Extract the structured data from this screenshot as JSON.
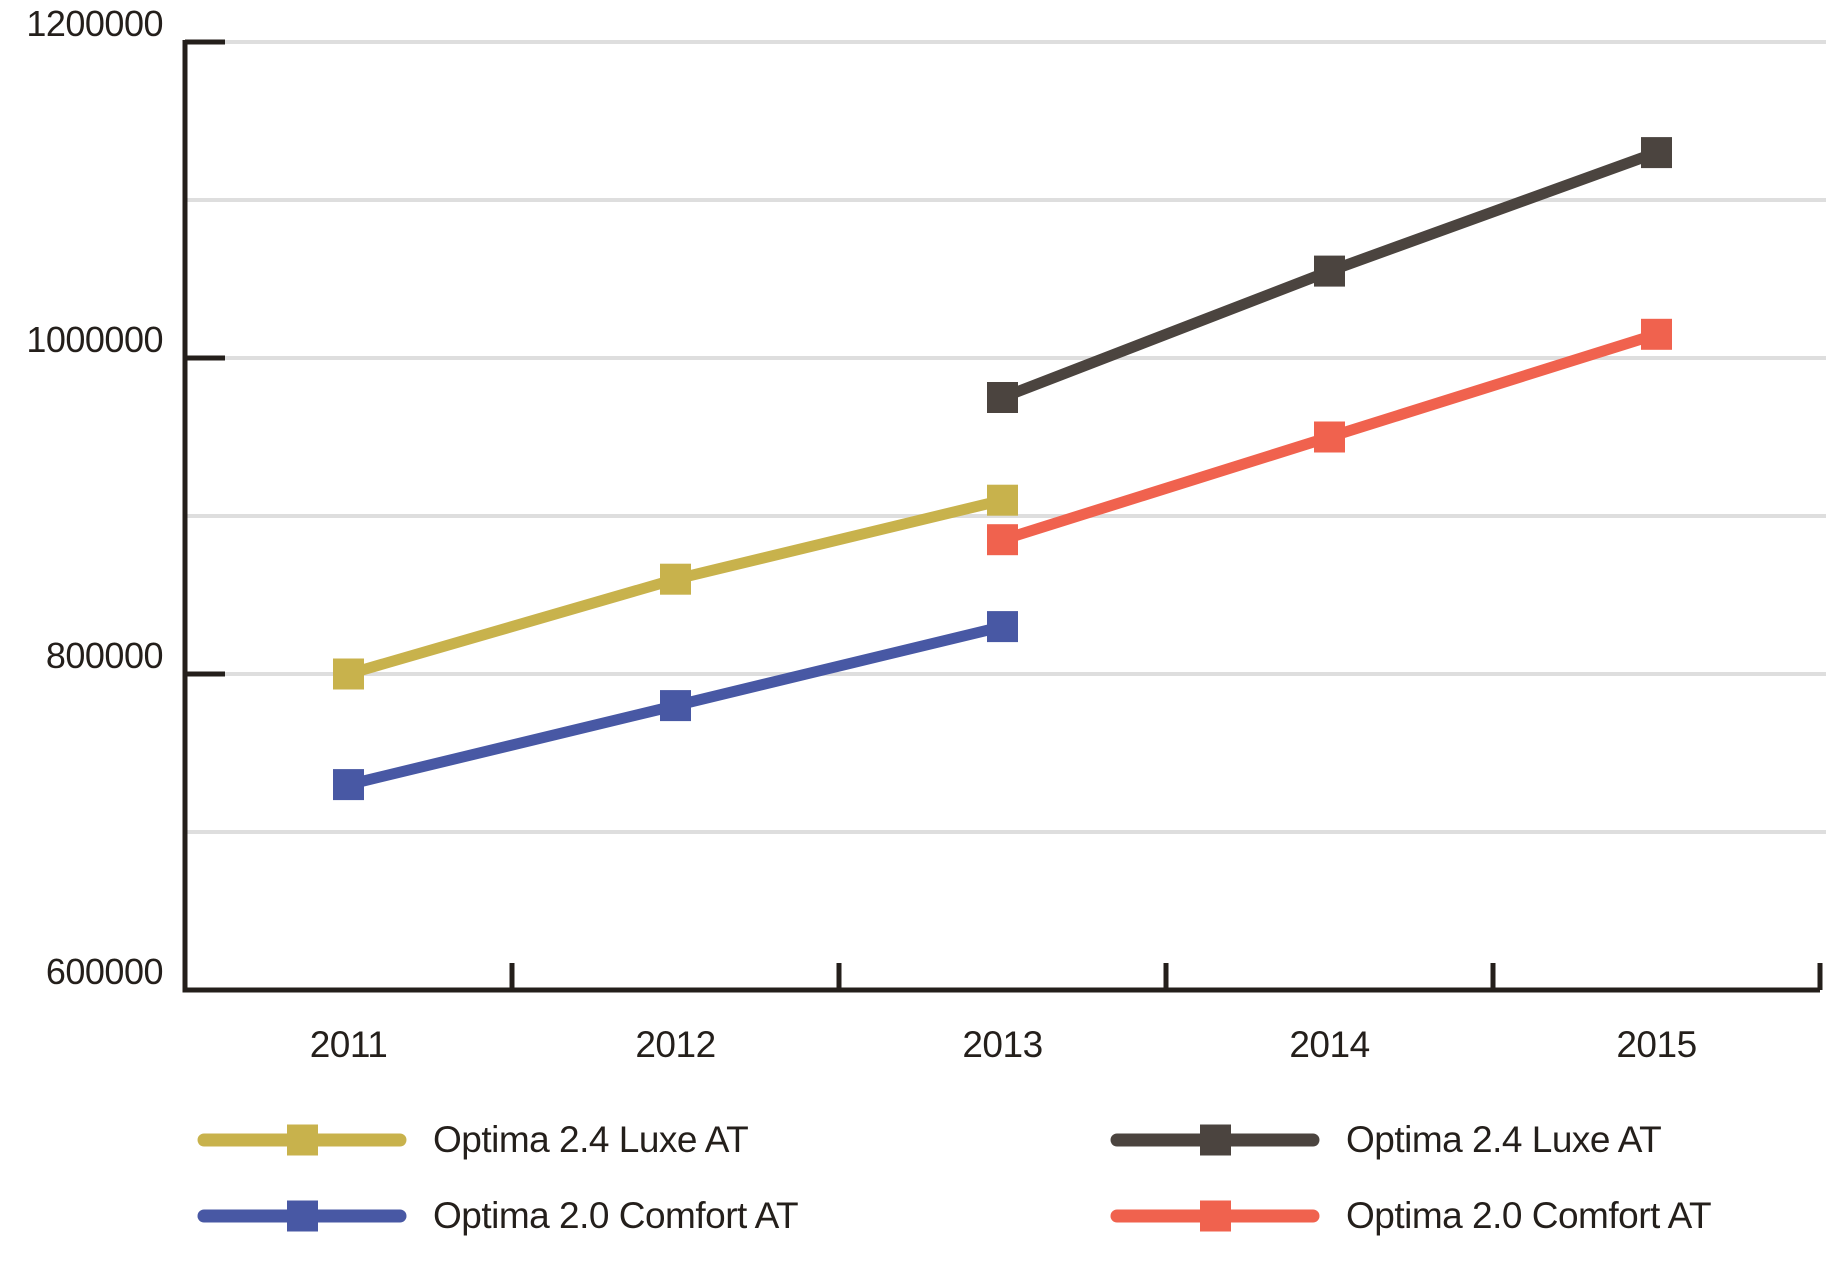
{
  "chart_data": {
    "type": "line",
    "x_labels": [
      "2011",
      "2012",
      "2013",
      "2014",
      "2015"
    ],
    "y_tick_labels": [
      "1200000",
      "1000000",
      "800000",
      "600000"
    ],
    "y_tick_values": [
      1200000,
      1000000,
      800000,
      600000
    ],
    "ylim": [
      600000,
      1200000
    ],
    "grid_step": 100000,
    "grid": true,
    "legend_position": "bottom",
    "axis_color": "#241f1b",
    "grid_color": "#dedede",
    "background": "#ffffff",
    "series": [
      {
        "name": "Optima 2.4 Luxe AT",
        "color": "#c8b24c",
        "legend_column": "left",
        "values": [
          800000,
          860000,
          910000,
          null,
          null
        ]
      },
      {
        "name": "Optima 2.0 Comfort AT",
        "color": "#4858a4",
        "legend_column": "left",
        "values": [
          730000,
          780000,
          830000,
          null,
          null
        ]
      },
      {
        "name": "Optima 2.4 Luxe AT",
        "color": "#4b443f",
        "legend_column": "right",
        "values": [
          null,
          null,
          975000,
          1055000,
          1130000
        ]
      },
      {
        "name": "Optima 2.0 Comfort AT",
        "color": "#f0624e",
        "legend_column": "right",
        "values": [
          null,
          null,
          885000,
          950000,
          1015000
        ]
      }
    ]
  }
}
